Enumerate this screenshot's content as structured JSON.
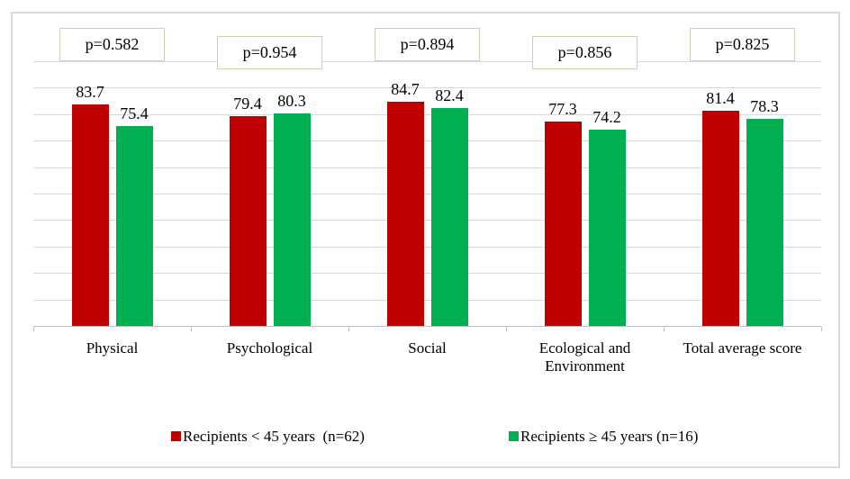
{
  "chart_data": {
    "type": "bar",
    "title": "",
    "xlabel": "",
    "ylabel": "",
    "categories": [
      "Physical",
      "Psychological",
      "Social",
      "Ecological and Environment",
      "Total average score"
    ],
    "series": [
      {
        "name": "Recipients < 45 years  (n=62)",
        "color": "#C00000",
        "values": [
          83.7,
          79.4,
          84.7,
          77.3,
          81.4
        ]
      },
      {
        "name": "Recipients ≥ 45 years (n=16)",
        "color": "#00B050",
        "values": [
          75.4,
          80.3,
          82.4,
          74.2,
          78.3
        ]
      }
    ],
    "p_value_labels": [
      "p=0.582",
      "p=0.954",
      "p=0.894",
      "p=0.856",
      "p=0.825"
    ],
    "ylim": [
      0,
      100
    ],
    "grid_step": 10,
    "grid": true,
    "y_tick_labels_visible": false,
    "legend_position": "bottom"
  },
  "colors": {
    "series_1": "#C00000",
    "series_2": "#00B050",
    "gridline": "#D9D9D9",
    "axis": "#BFBFBF",
    "p_box_border": "#D6CEB3",
    "figure_border": "#D9D9D9",
    "text": "#000000"
  }
}
